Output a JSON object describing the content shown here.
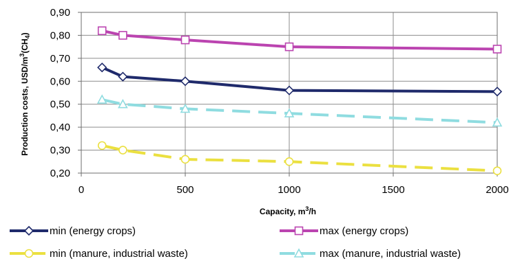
{
  "chart_data": {
    "type": "line",
    "ylabel": "Production costs, USD/m",
    "ylabel_sup": "3",
    "ylabel_tail1": "(CH",
    "ylabel_sub": "4",
    "ylabel_tail2": ")",
    "xlabel": "Capacity, m",
    "xlabel_sup": "3",
    "xlabel_tail": "/h",
    "xlim": [
      0,
      2000
    ],
    "ylim": [
      0.2,
      0.9
    ],
    "x_ticks": [
      0,
      500,
      1000,
      1500,
      2000
    ],
    "x_tick_labels": [
      "0",
      "500",
      "1000",
      "1500",
      "2000"
    ],
    "y_ticks": [
      0.2,
      0.3,
      0.4,
      0.5,
      0.6,
      0.7,
      0.8,
      0.9
    ],
    "y_tick_labels": [
      "0,20",
      "0,30",
      "0,40",
      "0,50",
      "0,60",
      "0,70",
      "0,80",
      "0,90"
    ],
    "grid": true,
    "legend_position": "bottom",
    "series": [
      {
        "name": "min (energy crops)",
        "color": "#1f2a6b",
        "marker": "diamond",
        "dash": "solid",
        "x": [
          100,
          200,
          500,
          1000,
          2000
        ],
        "y": [
          0.66,
          0.62,
          0.6,
          0.56,
          0.555
        ]
      },
      {
        "name": "max (energy crops)",
        "color": "#bb44b0",
        "marker": "square",
        "dash": "solid",
        "x": [
          100,
          200,
          500,
          1000,
          2000
        ],
        "y": [
          0.82,
          0.8,
          0.78,
          0.75,
          0.74
        ]
      },
      {
        "name": "min (manure, industrial waste)",
        "color": "#ebe040",
        "marker": "circle",
        "dash": "dashed",
        "x": [
          100,
          200,
          500,
          1000,
          2000
        ],
        "y": [
          0.32,
          0.3,
          0.26,
          0.25,
          0.21
        ]
      },
      {
        "name": "max (manure, industrial waste)",
        "color": "#8fdce0",
        "marker": "triangle",
        "dash": "dashed",
        "x": [
          100,
          200,
          500,
          1000,
          2000
        ],
        "y": [
          0.52,
          0.5,
          0.48,
          0.46,
          0.42
        ]
      }
    ]
  }
}
